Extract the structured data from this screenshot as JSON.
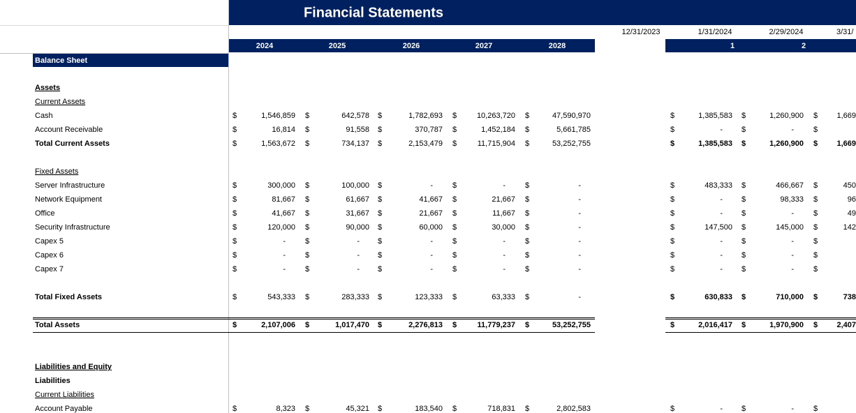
{
  "header": {
    "title": "Financial Statements",
    "dates": [
      "12/31/2023",
      "1/31/2024",
      "2/29/2024",
      "3/31/"
    ],
    "years": [
      2024,
      2025,
      2026,
      2027,
      2028
    ],
    "periods": [
      1,
      2
    ]
  },
  "currency": "$",
  "section": "Balance Sheet",
  "rows": [
    {
      "label": "Assets"
    },
    {
      "label": "Current Assets"
    },
    {
      "label": "Cash",
      "annual": [
        "1,546,859",
        "642,578",
        "1,782,693",
        "10,263,720",
        "47,590,970"
      ],
      "monthly": [
        "1,385,583",
        "1,260,900",
        "1,669"
      ]
    },
    {
      "label": "Account Receivable",
      "annual": [
        "16,814",
        "91,558",
        "370,787",
        "1,452,184",
        "5,661,785"
      ],
      "monthly": [
        "-",
        "-",
        null
      ]
    },
    {
      "label": "Total Current Assets",
      "annual": [
        "1,563,672",
        "734,137",
        "2,153,479",
        "11,715,904",
        "53,252,755"
      ],
      "monthly": [
        "1,385,583",
        "1,260,900",
        "1,669"
      ]
    },
    {
      "label": "Fixed Assets"
    },
    {
      "label": "Server Infrastructure",
      "annual": [
        "300,000",
        "100,000",
        "-",
        "-",
        "-"
      ],
      "monthly": [
        "483,333",
        "466,667",
        "450"
      ]
    },
    {
      "label": "Network Equipment",
      "annual": [
        "81,667",
        "61,667",
        "41,667",
        "21,667",
        "-"
      ],
      "monthly": [
        "-",
        "98,333",
        "96"
      ]
    },
    {
      "label": "Office",
      "annual": [
        "41,667",
        "31,667",
        "21,667",
        "11,667",
        "-"
      ],
      "monthly": [
        "-",
        "-",
        "49"
      ]
    },
    {
      "label": "Security Infrastructure",
      "annual": [
        "120,000",
        "90,000",
        "60,000",
        "30,000",
        "-"
      ],
      "monthly": [
        "147,500",
        "145,000",
        "142"
      ]
    },
    {
      "label": "Capex 5",
      "annual": [
        "-",
        "-",
        "-",
        "-",
        "-"
      ],
      "monthly": [
        "-",
        "-",
        null
      ]
    },
    {
      "label": "Capex 6",
      "annual": [
        "-",
        "-",
        "-",
        "-",
        "-"
      ],
      "monthly": [
        "-",
        "-",
        null
      ]
    },
    {
      "label": "Capex 7",
      "annual": [
        "-",
        "-",
        "-",
        "-",
        "-"
      ],
      "monthly": [
        "-",
        "-",
        null
      ]
    },
    {
      "label": "Total Fixed Assets",
      "annual": [
        "543,333",
        "283,333",
        "123,333",
        "63,333",
        "-"
      ],
      "monthly": [
        "630,833",
        "710,000",
        "738"
      ]
    },
    {
      "label": "Total Assets",
      "annual": [
        "2,107,006",
        "1,017,470",
        "2,276,813",
        "11,779,237",
        "53,252,755"
      ],
      "monthly": [
        "2,016,417",
        "1,970,900",
        "2,407"
      ]
    },
    {
      "label": "Liabilities and Equity"
    },
    {
      "label": "Liabilities"
    },
    {
      "label": "Current Liabilities"
    },
    {
      "label": "Account Payable",
      "annual": [
        "8,323",
        "45,321",
        "183,540",
        "718,831",
        "2,802,583"
      ],
      "monthly": [
        "-",
        "-",
        null
      ]
    }
  ]
}
